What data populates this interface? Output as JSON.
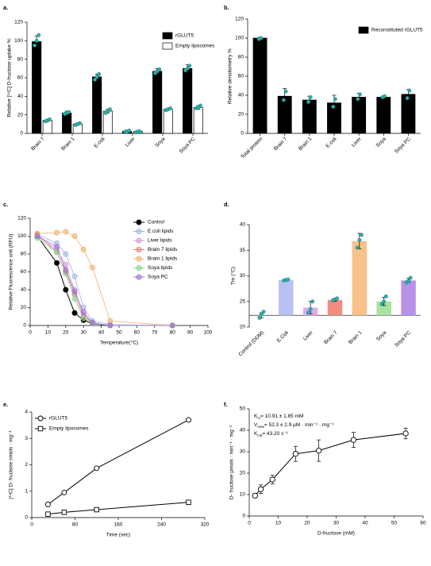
{
  "chart_data": [
    {
      "panel": "a.",
      "type": "bar",
      "y_label": "Relative [¹⁴C] D-fructose uptake %",
      "categories": [
        "Brain 7",
        "Brain 1",
        "E.coli",
        "Liver",
        "Soya",
        "Soya PC"
      ],
      "ylim": [
        0,
        120
      ],
      "yticks": [
        0,
        20,
        40,
        60,
        80,
        100,
        120
      ],
      "point_color": "#2ab3ab",
      "series": [
        {
          "name": "rGLUT5",
          "color": "#000000",
          "values": [
            99,
            22,
            61,
            2,
            67,
            70
          ],
          "errors": [
            6,
            2,
            3,
            1,
            3,
            4
          ],
          "points": [
            [
              95,
              100,
              106
            ],
            [
              21,
              22,
              23
            ],
            [
              58,
              61,
              64
            ],
            [
              2,
              2,
              3
            ],
            [
              65,
              67,
              69
            ],
            [
              68,
              70,
              73
            ]
          ]
        },
        {
          "name": "Empty liposomes",
          "color": "#ffffff",
          "values": [
            14,
            10,
            24,
            2,
            26,
            28
          ],
          "errors": [
            1,
            1,
            2,
            1,
            1,
            2
          ],
          "points": [
            [
              13,
              14,
              15
            ],
            [
              9,
              10,
              11
            ],
            [
              22,
              24,
              26
            ],
            [
              1,
              2,
              2
            ],
            [
              25,
              26,
              27
            ],
            [
              27,
              28,
              30
            ]
          ]
        }
      ]
    },
    {
      "panel": "b.",
      "type": "bar",
      "y_label": "Relative densitometry %",
      "categories": [
        "Total protein",
        "Brain 7",
        "Brain 1",
        "E.coli",
        "Liver",
        "Soya",
        "Soya PC"
      ],
      "ylim": [
        0,
        120
      ],
      "yticks": [
        0,
        20,
        40,
        60,
        80,
        100,
        120
      ],
      "point_color": "#2ab3ab",
      "series": [
        {
          "name": "Reconstituted rGLUT5",
          "color": "#000000",
          "values": [
            100,
            39,
            35,
            32,
            38,
            38,
            41
          ],
          "errors": [
            1,
            8,
            4,
            8,
            4,
            1,
            5
          ],
          "points": [
            [
              99,
              100
            ],
            [
              35,
              44
            ],
            [
              33,
              38
            ],
            [
              28,
              36
            ],
            [
              36,
              41
            ],
            [
              38,
              39
            ],
            [
              37,
              45
            ]
          ]
        }
      ]
    },
    {
      "panel": "c.",
      "type": "line",
      "y_label": "Relative Fluorescence unit (RFU)",
      "x_label": "Temperature(°C)",
      "xlim": [
        0,
        100
      ],
      "xticks": [
        0,
        10,
        20,
        30,
        40,
        50,
        60,
        70,
        80,
        90,
        100
      ],
      "ylim": [
        0,
        120
      ],
      "yticks": [
        0,
        20,
        40,
        60,
        80,
        100,
        120
      ],
      "x": [
        4,
        15,
        20,
        25,
        30,
        35,
        45,
        80
      ],
      "series": [
        {
          "name": "Control",
          "color": "#000000",
          "values": [
            100,
            70,
            40,
            14,
            6,
            2,
            0,
            0
          ]
        },
        {
          "name": "E.coli lipids",
          "color": "#9fb3ea",
          "values": [
            102,
            92,
            80,
            55,
            20,
            5,
            1,
            0
          ]
        },
        {
          "name": "Liver lipids",
          "color": "#d59ae0",
          "values": [
            100,
            85,
            68,
            40,
            12,
            3,
            0,
            0
          ]
        },
        {
          "name": "Brain 7 lipids",
          "color": "#ee7f70",
          "values": [
            102,
            82,
            60,
            35,
            10,
            3,
            0,
            0
          ]
        },
        {
          "name": "Brain 1 lipids",
          "color": "#eeb070",
          "values": [
            103,
            104,
            105,
            100,
            85,
            65,
            5,
            0
          ]
        },
        {
          "name": "Soya lipids",
          "color": "#88d488",
          "values": [
            98,
            82,
            58,
            30,
            8,
            2,
            0,
            0
          ]
        },
        {
          "name": "Soya PC",
          "color": "#a070d8",
          "values": [
            100,
            88,
            62,
            38,
            15,
            3,
            0,
            0
          ]
        }
      ]
    },
    {
      "panel": "d.",
      "type": "bar",
      "y_label": "Tm (°C)",
      "categories": [
        "Control (DDM)",
        "E.Coli",
        "Liver",
        "Brain 7",
        "Brain 1",
        "Soya",
        "Soya PC"
      ],
      "ylim": [
        20,
        40
      ],
      "yticks": [
        20,
        25,
        30,
        35,
        40
      ],
      "point_color": "#2ab3ab",
      "values": [
        22.3,
        29.2,
        23.8,
        25.3,
        36.8,
        25.0,
        29.1
      ],
      "errors": [
        0.5,
        0.2,
        1.2,
        0.3,
        1.5,
        0.8,
        0.4
      ],
      "colors": [
        null,
        "#b9c1f2",
        "#dcaaea",
        "#f28d80",
        "#f8c189",
        "#a9e1a1",
        "#b991ea"
      ],
      "points": [
        [
          21.8,
          22.5,
          23
        ],
        [
          29.1,
          29.2,
          29.3
        ],
        [
          22.8,
          23.5,
          25
        ],
        [
          25.2,
          25.4,
          25.6
        ],
        [
          35.5,
          37,
          38
        ],
        [
          24.5,
          25,
          26
        ],
        [
          28.7,
          29,
          29.6
        ]
      ]
    },
    {
      "panel": "e.",
      "type": "line",
      "y_label": "[¹⁴C] D- fructose nmols · mg⁻¹",
      "x_label": "Time (sec)",
      "xlim": [
        0,
        320
      ],
      "xticks": [
        0,
        80,
        160,
        240,
        320
      ],
      "ylim": [
        0,
        4
      ],
      "yticks": [
        0,
        1,
        2,
        3,
        4
      ],
      "x": [
        30,
        60,
        120,
        290
      ],
      "series": [
        {
          "name": "rGLUT5",
          "color": "#000000",
          "marker": "circle",
          "values": [
            0.5,
            0.95,
            1.87,
            3.7
          ]
        },
        {
          "name": "Empty liposomes",
          "color": "#000000",
          "marker": "square",
          "values": [
            0.13,
            0.2,
            0.3,
            0.58
          ]
        }
      ]
    },
    {
      "panel": "f.",
      "type": "scatter",
      "y_label": "D- fructose μmols · min⁻¹ · mg⁻¹",
      "x_label": "D-fructose (mM)",
      "xlim": [
        0,
        60
      ],
      "xticks": [
        0,
        10,
        20,
        30,
        40,
        50,
        60
      ],
      "ylim": [
        0,
        50
      ],
      "yticks": [
        0,
        10,
        20,
        30,
        40,
        50
      ],
      "x": [
        2,
        4,
        8,
        16,
        24,
        36,
        54
      ],
      "values": [
        9.5,
        12.5,
        17,
        29,
        30.5,
        35.5,
        38.5
      ],
      "errors": [
        1,
        2,
        2,
        3.5,
        5,
        3.5,
        2.5
      ],
      "annotations": [
        {
          "symbol": "K",
          "sub": "m",
          "text": "= 10.91 ± 1.85 mM"
        },
        {
          "symbol": "V",
          "sub": "max",
          "text": "= 52.3 ± 2.9 μM · min⁻¹ · mg⁻¹"
        },
        {
          "symbol": "K",
          "sub": "cat",
          "text": "= 43.20 s⁻¹"
        }
      ]
    }
  ]
}
